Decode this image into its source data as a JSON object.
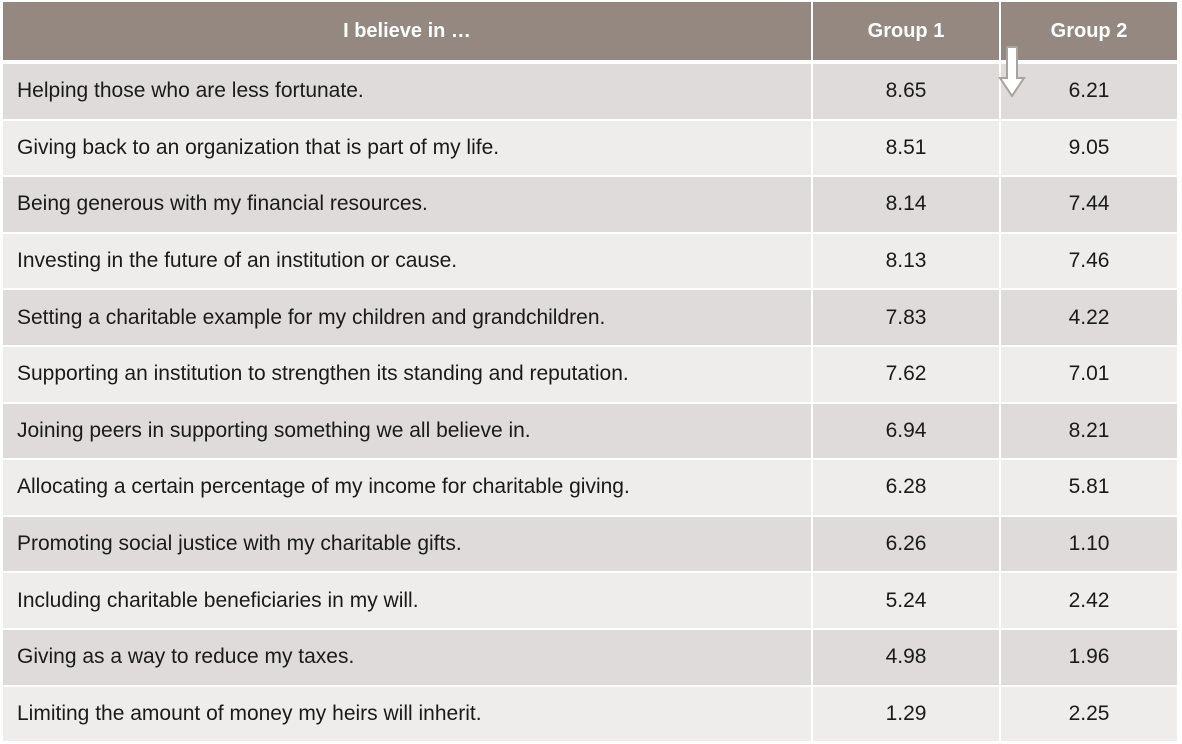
{
  "table": {
    "headers": [
      "I believe in …",
      "Group 1",
      "Group 2"
    ],
    "rows": [
      {
        "statement": "Helping those who are less fortunate.",
        "group1": "8.65",
        "group2": "6.21"
      },
      {
        "statement": "Giving back to an organization that is part of my life.",
        "group1": "8.51",
        "group2": "9.05"
      },
      {
        "statement": "Being generous with my financial resources.",
        "group1": "8.14",
        "group2": "7.44"
      },
      {
        "statement": "Investing in the future of an institution or cause.",
        "group1": "8.13",
        "group2": "7.46"
      },
      {
        "statement": "Setting a charitable example for my children and grandchildren.",
        "group1": "7.83",
        "group2": "4.22"
      },
      {
        "statement": "Supporting an institution to strengthen its standing and reputation.",
        "group1": "7.62",
        "group2": "7.01"
      },
      {
        "statement": "Joining peers in supporting something we all believe in.",
        "group1": "6.94",
        "group2": "8.21"
      },
      {
        "statement": "Allocating a certain percentage of my income for charitable giving.",
        "group1": "6.28",
        "group2": "5.81"
      },
      {
        "statement": "Promoting social justice with my charitable gifts.",
        "group1": "6.26",
        "group2": "1.10"
      },
      {
        "statement": "Including charitable beneficiaries in my will.",
        "group1": "5.24",
        "group2": "2.42"
      },
      {
        "statement": "Giving as a way to reduce my taxes.",
        "group1": "4.98",
        "group2": "1.96"
      },
      {
        "statement": "Limiting the amount of money my heirs will inherit.",
        "group1": "1.29",
        "group2": "2.25"
      }
    ]
  },
  "icons": {
    "sort_indicator": "down-arrow-icon"
  },
  "colors": {
    "header_bg": "#958880",
    "header_text": "#ffffff",
    "row_odd_bg": "#dedbda",
    "row_even_bg": "#efedec"
  }
}
